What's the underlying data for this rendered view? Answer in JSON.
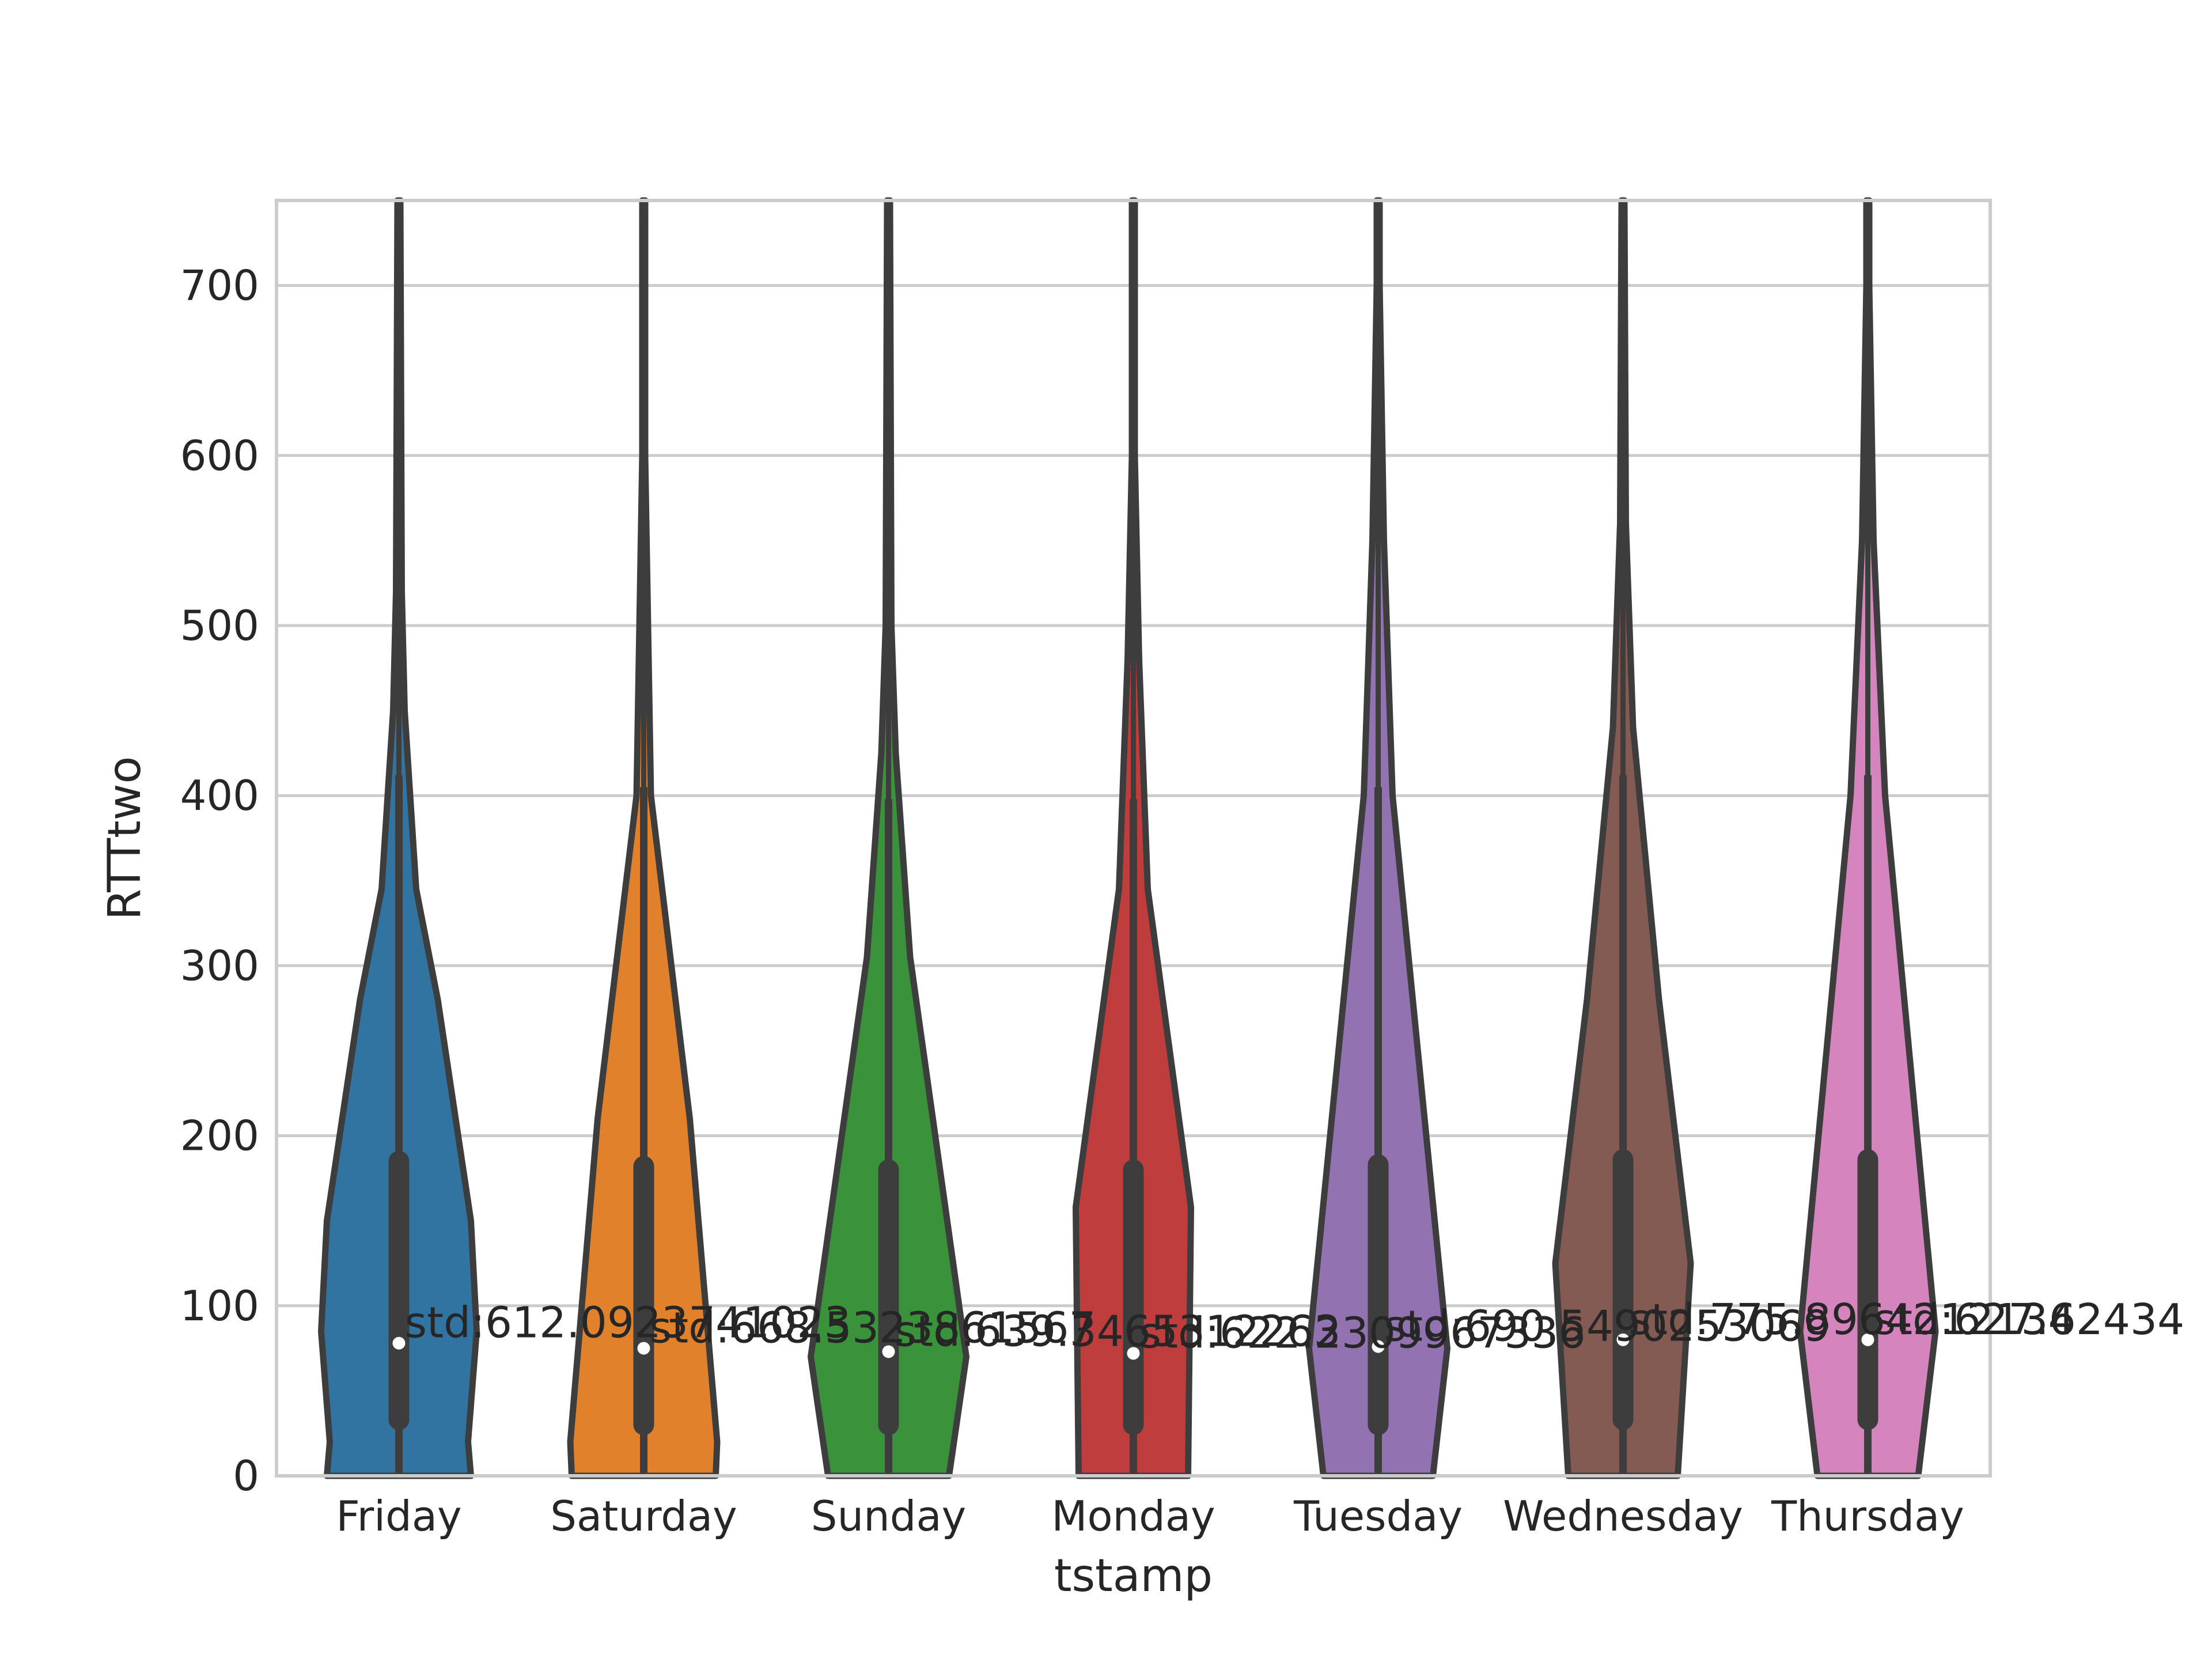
{
  "chart_data": {
    "type": "violin",
    "title": "",
    "xlabel": "tstamp",
    "ylabel": "RTTtwo",
    "ylim": [
      0,
      750
    ],
    "yticks": [
      0,
      100,
      200,
      300,
      400,
      500,
      600,
      700
    ],
    "grid": true,
    "categories": [
      "Friday",
      "Saturday",
      "Sunday",
      "Monday",
      "Tuesday",
      "Wednesday",
      "Thursday"
    ],
    "colors": [
      "#3274a1",
      "#e1812c",
      "#3a923a",
      "#c03d3e",
      "#9372b2",
      "#845b53",
      "#d684bd"
    ],
    "outline_color": "#3d3d3d",
    "medians": [
      78,
      75,
      73,
      72,
      76,
      80,
      80
    ],
    "q1": [
      33,
      30,
      30,
      30,
      30,
      33,
      33
    ],
    "q3": [
      185,
      182,
      180,
      180,
      183,
      186,
      186
    ],
    "whisker_high": [
      412,
      405,
      398,
      398,
      405,
      412,
      412
    ],
    "max": [
      750,
      750,
      750,
      750,
      750,
      750,
      750
    ],
    "violins": [
      {
        "name": "Friday",
        "profile": [
          [
            0,
            50
          ],
          [
            20,
            48
          ],
          [
            85,
            54
          ],
          [
            150,
            50
          ],
          [
            280,
            27
          ],
          [
            345,
            12
          ],
          [
            450,
            4
          ],
          [
            520,
            2
          ],
          [
            750,
            1
          ]
        ]
      },
      {
        "name": "Saturday",
        "profile": [
          [
            0,
            50
          ],
          [
            20,
            51
          ],
          [
            210,
            32
          ],
          [
            400,
            5
          ],
          [
            600,
            1
          ],
          [
            750,
            1
          ]
        ]
      },
      {
        "name": "Sunday",
        "profile": [
          [
            0,
            42
          ],
          [
            70,
            54
          ],
          [
            305,
            15
          ],
          [
            425,
            5
          ],
          [
            500,
            2
          ],
          [
            750,
            1
          ]
        ]
      },
      {
        "name": "Monday",
        "profile": [
          [
            0,
            38
          ],
          [
            158,
            40
          ],
          [
            345,
            10
          ],
          [
            480,
            4
          ],
          [
            600,
            1
          ],
          [
            750,
            1
          ]
        ]
      },
      {
        "name": "Tuesday",
        "profile": [
          [
            0,
            38
          ],
          [
            75,
            48
          ],
          [
            400,
            10
          ],
          [
            550,
            4
          ],
          [
            700,
            1
          ],
          [
            750,
            1
          ]
        ]
      },
      {
        "name": "Wednesday",
        "profile": [
          [
            0,
            38
          ],
          [
            125,
            47
          ],
          [
            280,
            25
          ],
          [
            440,
            7
          ],
          [
            560,
            2
          ],
          [
            750,
            1
          ]
        ]
      },
      {
        "name": "Thursday",
        "profile": [
          [
            0,
            35
          ],
          [
            85,
            47
          ],
          [
            400,
            12
          ],
          [
            550,
            4
          ],
          [
            700,
            1
          ],
          [
            750,
            1
          ]
        ]
      }
    ],
    "annotations": [
      "std:612.0923741023",
      "std:668.5323861567",
      "std:639.3465312263",
      "std:622.2309967336",
      "std:690.5490253069",
      "std:775.8964212134",
      "std:627.62434"
    ]
  }
}
